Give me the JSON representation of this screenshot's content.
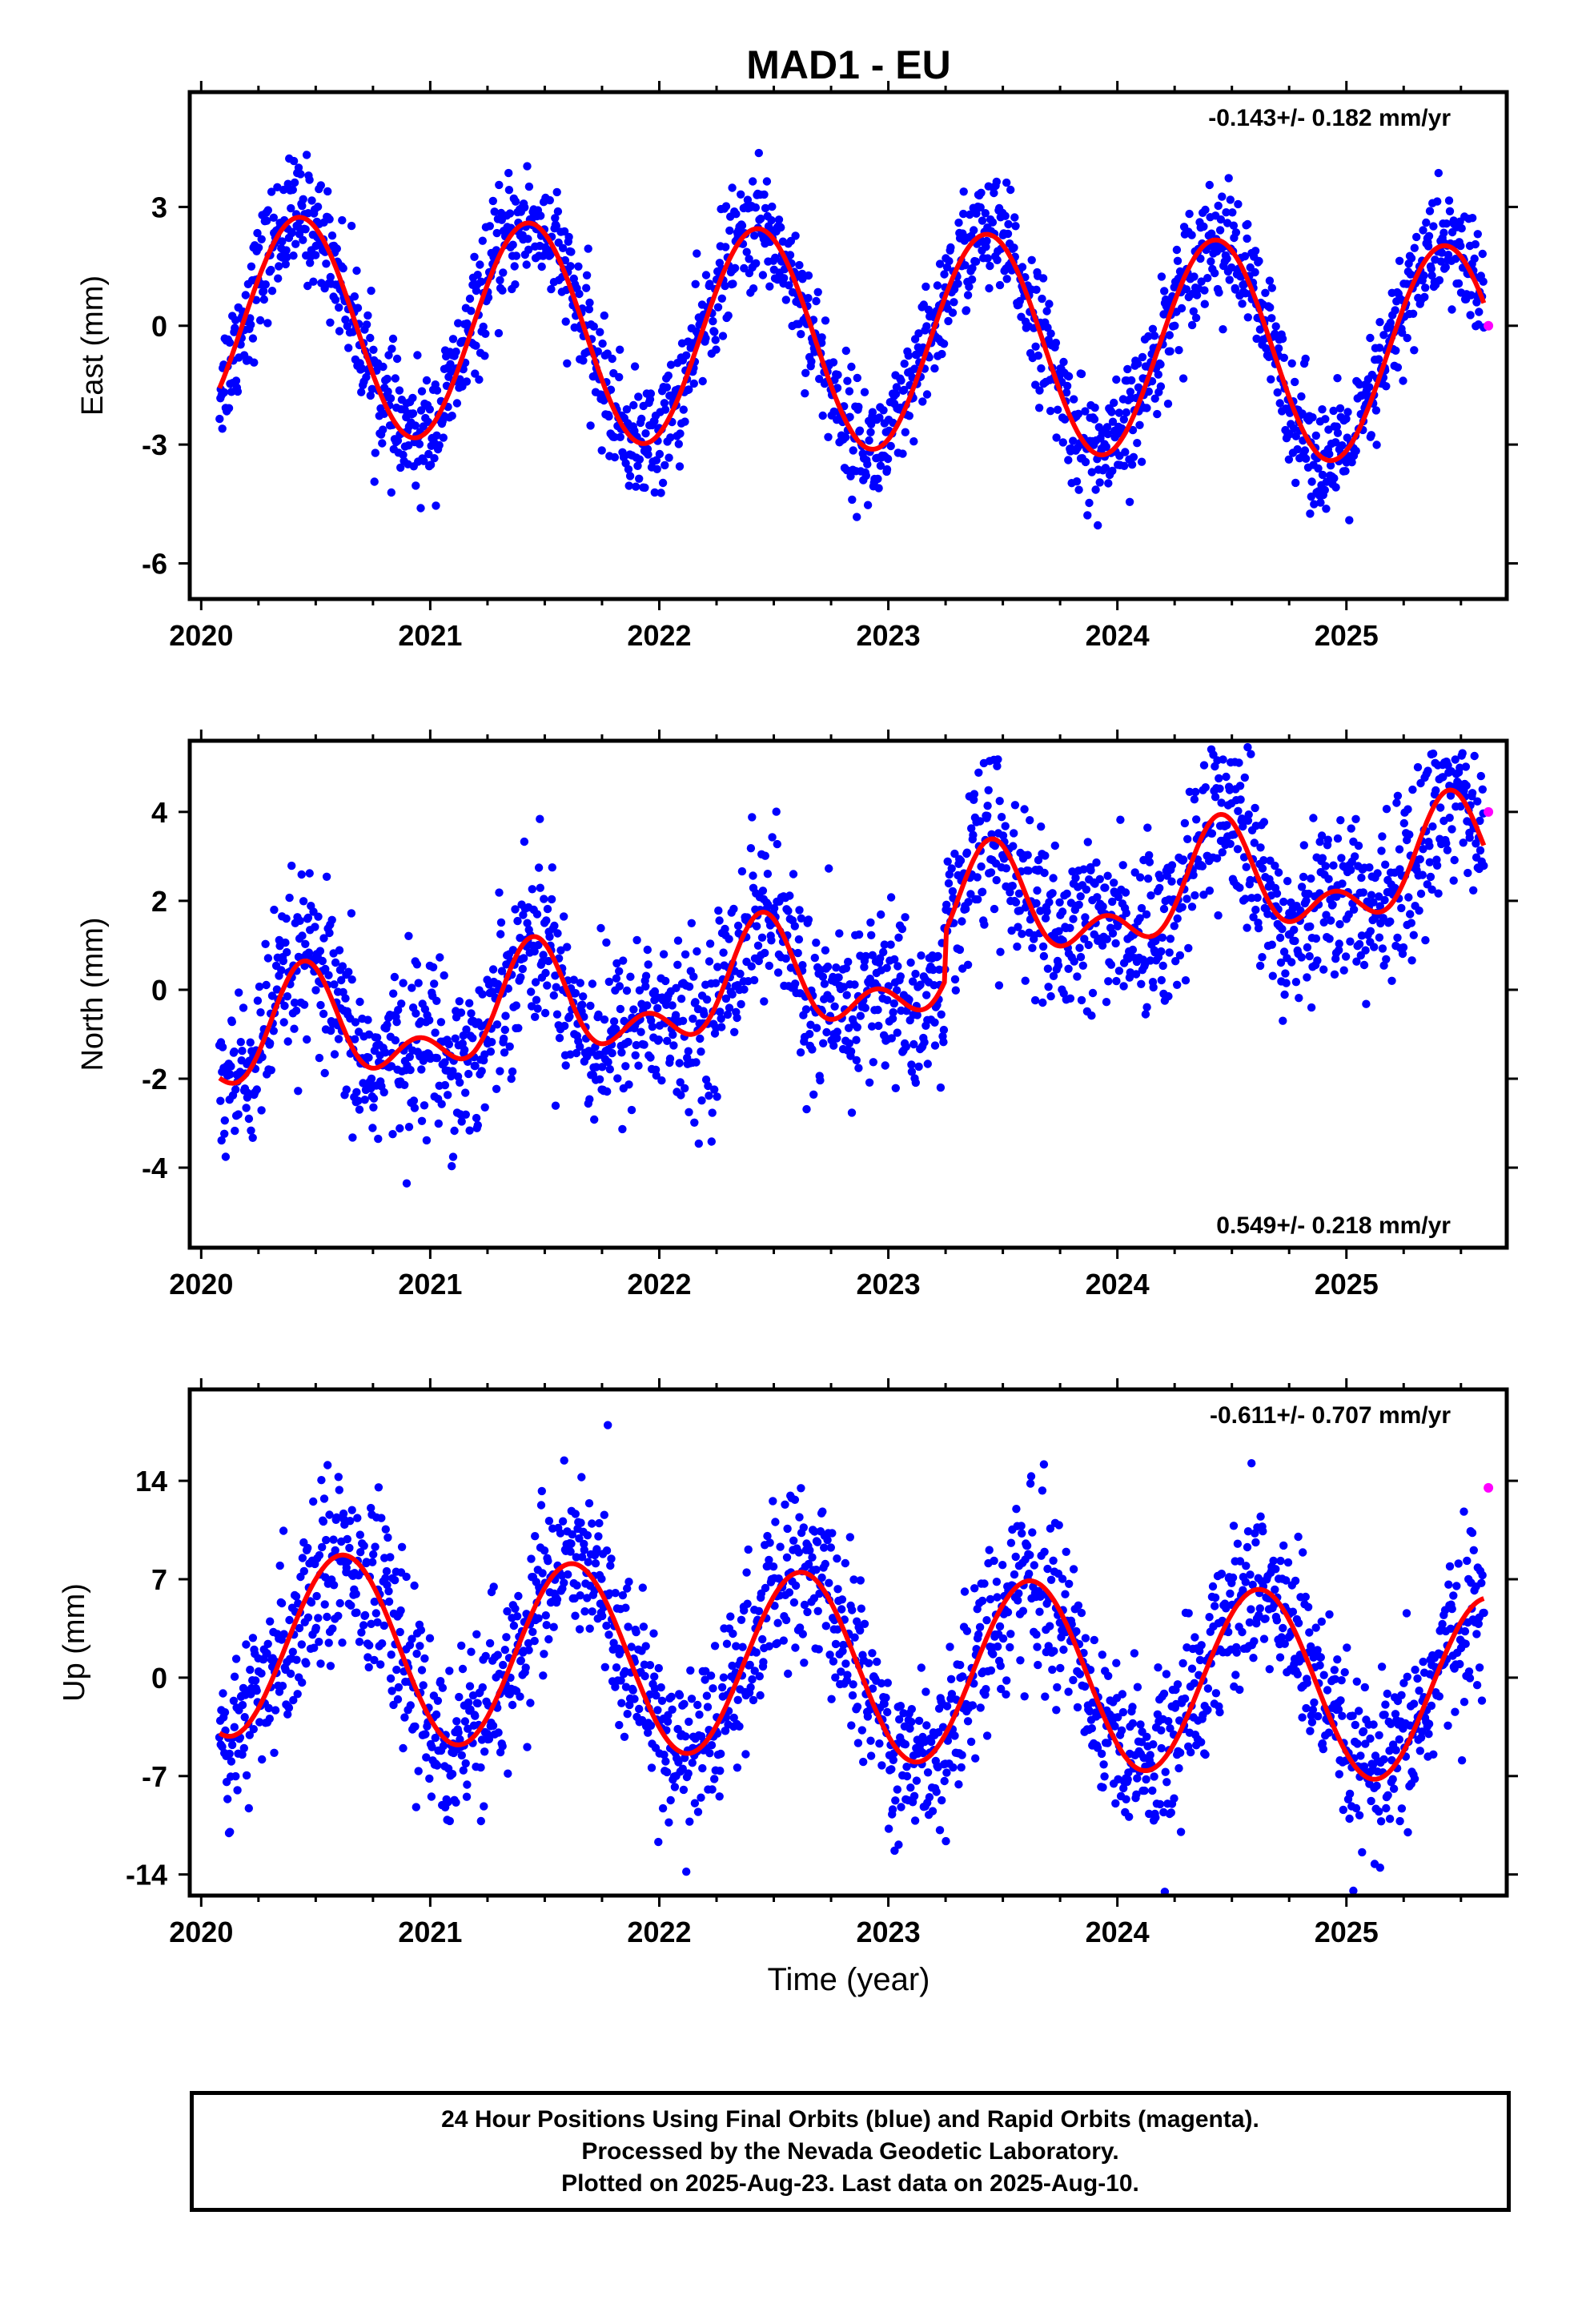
{
  "chart_data": {
    "title": "MAD1 - EU",
    "type": "scatter",
    "xlabel": "Time (year)",
    "x_ticks": [
      2020,
      2021,
      2022,
      2023,
      2024,
      2025
    ],
    "x_tick_labels": [
      "2020",
      "2021",
      "2022",
      "2023",
      "2024",
      "2025"
    ],
    "xlim": [
      2019.95,
      2025.7
    ],
    "marker_colors": {
      "final_orbits": "#0000ff",
      "rapid_orbits": "#ff00ff",
      "model": "#ff0000"
    },
    "panels": [
      {
        "key": "east",
        "ylabel": "East (mm)",
        "ylim": [
          -6.9,
          5.9
        ],
        "yticks": [
          3,
          0,
          -3,
          -6
        ],
        "ytick_labels": [
          "3",
          "0",
          "-3",
          "-6"
        ],
        "rate_text": "-0.143+/- 0.182 mm/yr",
        "rate_position": "top-right",
        "model": {
          "offset": 0.05,
          "trend": -0.143,
          "annual_amp": 2.75,
          "annual_peak": 0.43,
          "semi_amp": 0,
          "semi_phase": 0.2
        },
        "scatter_sd": 0.75,
        "scatter_count": 1900,
        "rapid_point": {
          "x": 2025.62,
          "y": 0.0
        },
        "data_end": 2025.6
      },
      {
        "key": "north",
        "ylabel": "North (mm)",
        "ylim": [
          -5.8,
          5.6
        ],
        "yticks": [
          4,
          2,
          0,
          -2,
          -4
        ],
        "ytick_labels": [
          "4",
          "2",
          "0",
          "-2",
          "-4"
        ],
        "rate_text": "0.549+/- 0.218 mm/yr",
        "rate_position": "bottom-right",
        "model": {
          "offset": -1.3,
          "trend": 0.549,
          "annual_amp": 1.0,
          "annual_peak": 0.45,
          "semi_amp": 0.7,
          "semi_phase": 0.45
        },
        "step": {
          "x": 2023.25,
          "size": 1.1
        },
        "scatter_sd": 0.95,
        "scatter_count": 1900,
        "rapid_point": {
          "x": 2025.62,
          "y": 4.0
        },
        "data_end": 2025.6
      },
      {
        "key": "up",
        "ylabel": "Up (mm)",
        "ylim": [
          -15.5,
          20.5
        ],
        "yticks": [
          14,
          7,
          0,
          -7,
          -14
        ],
        "ytick_labels": [
          "14",
          "7",
          "0",
          "-7",
          "-14"
        ],
        "rate_text": "-0.611+/- 0.707 mm/yr",
        "rate_position": "top-right",
        "model": {
          "offset": 2.5,
          "trend": -0.611,
          "annual_amp": 6.6,
          "annual_peak": 0.62,
          "semi_amp": 0,
          "semi_phase": 0.3
        },
        "scatter_sd": 3.0,
        "scatter_count": 1900,
        "rapid_point": {
          "x": 2025.62,
          "y": 13.5
        },
        "data_end": 2025.6
      }
    ]
  },
  "footer": {
    "line1": "24 Hour Positions Using Final Orbits (blue) and Rapid Orbits (magenta).",
    "line2": "Processed by the Nevada Geodetic Laboratory.",
    "line3": "Plotted on 2025-Aug-23. Last data on 2025-Aug-10."
  }
}
